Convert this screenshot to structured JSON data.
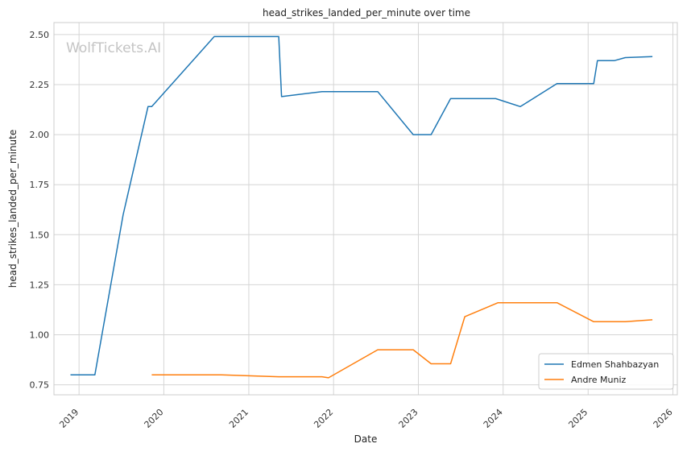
{
  "chart_data": {
    "type": "line",
    "title": "head_strikes_landed_per_minute over time",
    "xlabel": "Date",
    "ylabel": "head_strikes_landed_per_minute",
    "watermark": "WolfTickets.AI",
    "xlim": [
      "2018-09-15",
      "2026-01-20"
    ],
    "ylim": [
      0.7,
      2.56
    ],
    "x_ticks": [
      "2019",
      "2020",
      "2021",
      "2022",
      "2023",
      "2024",
      "2025",
      "2026"
    ],
    "y_ticks": [
      "0.75",
      "1.00",
      "1.25",
      "1.50",
      "1.75",
      "2.00",
      "2.25",
      "2.50"
    ],
    "grid": true,
    "legend_position": "bottom-right",
    "series": [
      {
        "name": "Edmen Shahbazyan",
        "color": "#1f77b4",
        "points": [
          [
            "2018-11-25",
            0.8
          ],
          [
            "2019-03-10",
            0.8
          ],
          [
            "2019-07-10",
            1.6
          ],
          [
            "2019-10-25",
            2.14
          ],
          [
            "2019-11-10",
            2.14
          ],
          [
            "2020-08-05",
            2.49
          ],
          [
            "2021-05-10",
            2.49
          ],
          [
            "2021-05-22",
            2.19
          ],
          [
            "2021-11-12",
            2.215
          ],
          [
            "2022-07-10",
            2.215
          ],
          [
            "2022-12-10",
            2.0
          ],
          [
            "2023-02-25",
            2.0
          ],
          [
            "2023-05-20",
            2.18
          ],
          [
            "2023-11-30",
            2.18
          ],
          [
            "2024-03-15",
            2.14
          ],
          [
            "2024-08-20",
            2.255
          ],
          [
            "2025-01-25",
            2.255
          ],
          [
            "2025-02-10",
            2.37
          ],
          [
            "2025-04-25",
            2.37
          ],
          [
            "2025-06-10",
            2.385
          ],
          [
            "2025-10-05",
            2.39
          ]
        ]
      },
      {
        "name": "Andre Muniz",
        "color": "#ff7f0e",
        "points": [
          [
            "2019-11-10",
            0.8
          ],
          [
            "2020-09-05",
            0.8
          ],
          [
            "2021-05-10",
            0.79
          ],
          [
            "2021-11-12",
            0.79
          ],
          [
            "2021-12-10",
            0.785
          ],
          [
            "2022-07-10",
            0.925
          ],
          [
            "2022-12-10",
            0.925
          ],
          [
            "2023-02-25",
            0.855
          ],
          [
            "2023-05-20",
            0.855
          ],
          [
            "2023-07-20",
            1.09
          ],
          [
            "2023-12-10",
            1.16
          ],
          [
            "2024-08-20",
            1.16
          ],
          [
            "2025-01-25",
            1.065
          ],
          [
            "2025-06-10",
            1.065
          ],
          [
            "2025-10-05",
            1.075
          ]
        ]
      }
    ]
  }
}
